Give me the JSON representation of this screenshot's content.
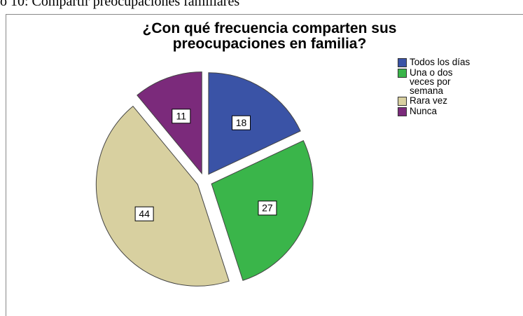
{
  "chart_data": {
    "type": "pie",
    "caption": "o 10: Compartir preocupaciones familiares",
    "title": "¿Con qué frecuencia comparten sus preocupaciones en familia?",
    "categories": [
      "Todos los días",
      "Una o dos veces por semana",
      "Rara vez",
      "Nunca"
    ],
    "values": [
      18,
      27,
      44,
      11
    ],
    "colors": [
      "#3a53a6",
      "#3ab54a",
      "#d8d0a0",
      "#7b2a7b"
    ],
    "legend": "upper right"
  }
}
